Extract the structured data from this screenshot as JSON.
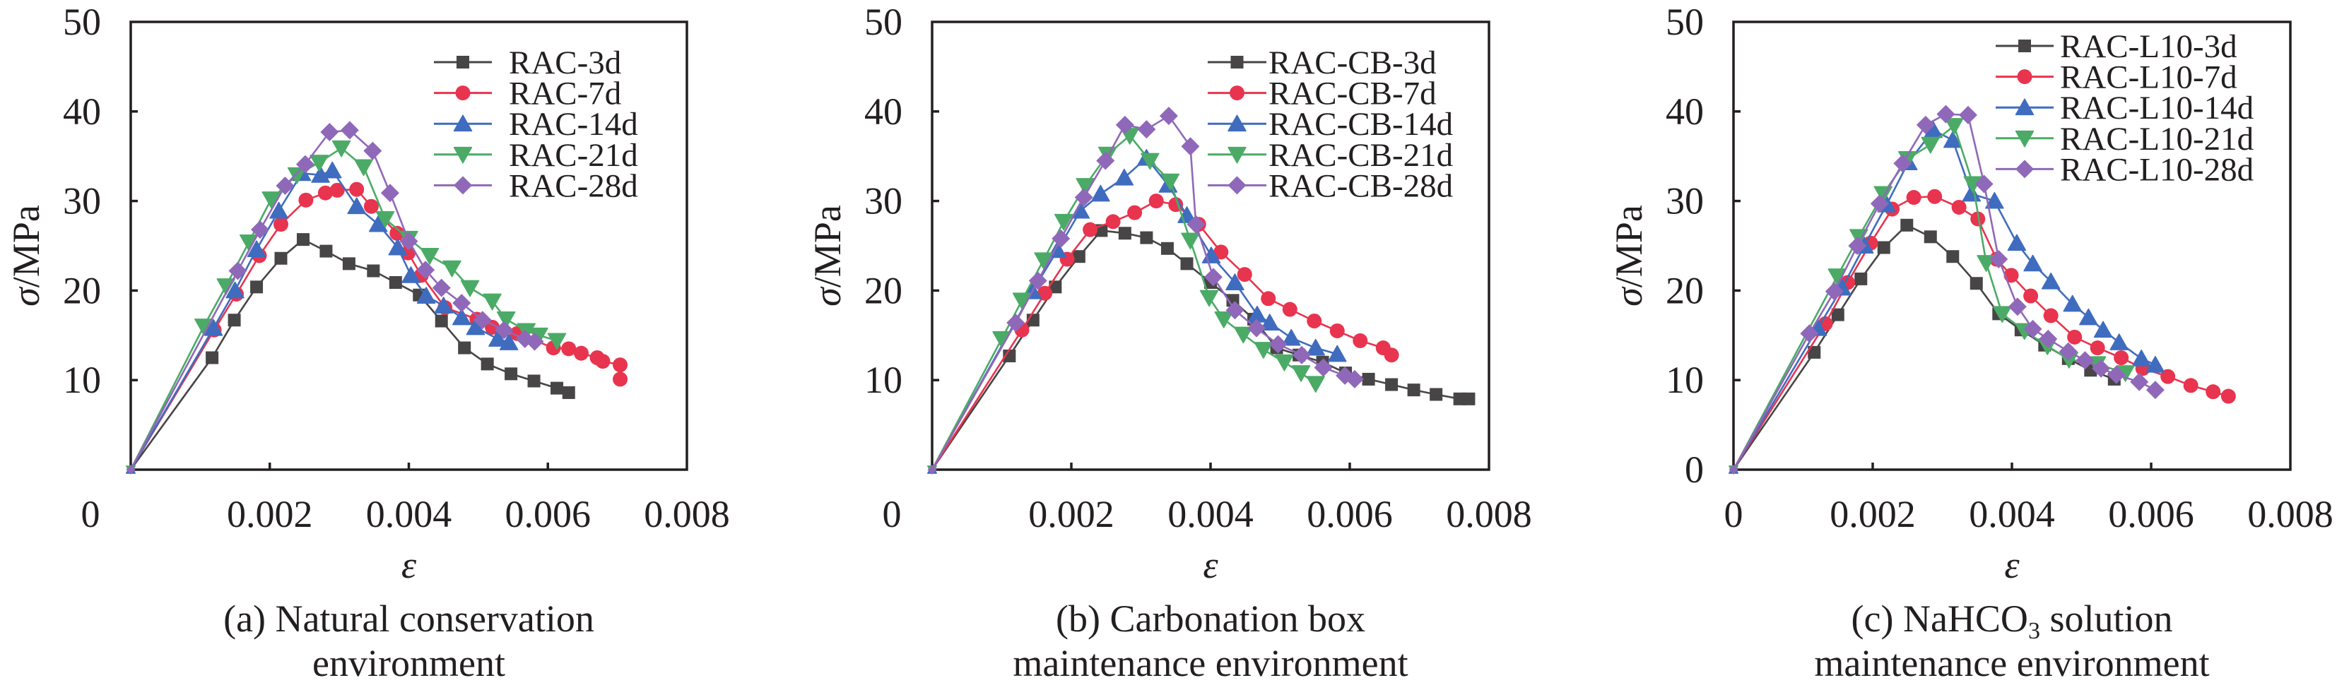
{
  "colors": {
    "3d": "#474546",
    "7d": "#e8344e",
    "14d": "#3f6cbf",
    "21d": "#4bab66",
    "28d": "#9068b9",
    "axis": "#231f20"
  },
  "chart_data": [
    {
      "type": "line",
      "panel": "a",
      "caption": {
        "prefix": "(a) Natural conservation",
        "subscript": "",
        "suffix": "",
        "line2": "environment"
      },
      "xlabel": "ε",
      "ylabel": {
        "symbol": "σ",
        "unit": "/MPa"
      },
      "xlim": [
        0,
        0.008
      ],
      "ylim": [
        0,
        50
      ],
      "grid": false,
      "legend": "top-right",
      "xticks": [
        0,
        0.002,
        0.004,
        0.006,
        0.008
      ],
      "xtick_labels": [
        "0",
        "0.002",
        "0.004",
        "0.006",
        "0.008"
      ],
      "yticks": [
        10,
        20,
        30,
        40,
        50
      ],
      "ytick_labels": [
        "10",
        "20",
        "30",
        "40",
        "50"
      ],
      "series": [
        {
          "name": "RAC-3d",
          "key": "3d",
          "marker": "square",
          "x": [
            0,
            0.00117,
            0.00149,
            0.00181,
            0.00216,
            0.00248,
            0.00281,
            0.00314,
            0.00349,
            0.00381,
            0.00415,
            0.00447,
            0.0048,
            0.00513,
            0.00547,
            0.0058,
            0.00613,
            0.0063
          ],
          "y": [
            0,
            12.5,
            16.7,
            20.4,
            23.6,
            25.7,
            24.4,
            23.0,
            22.2,
            20.9,
            19.5,
            16.6,
            13.6,
            11.8,
            10.7,
            9.9,
            9.1,
            8.6
          ]
        },
        {
          "name": "RAC-7d",
          "key": "7d",
          "marker": "circle",
          "x": [
            0,
            0.0012,
            0.00152,
            0.00185,
            0.00216,
            0.00252,
            0.0028,
            0.00297,
            0.00325,
            0.00346,
            0.00383,
            0.00399,
            0.00418,
            0.00452,
            0.00498,
            0.0052,
            0.00556,
            0.00608,
            0.0063,
            0.00648,
            0.00671,
            0.00679,
            0.00704,
            0.00704
          ],
          "y": [
            0,
            15.6,
            19.6,
            23.9,
            27.4,
            30.1,
            30.9,
            31.2,
            31.3,
            29.4,
            26.4,
            24.2,
            21.7,
            18.1,
            16.8,
            15.9,
            15.2,
            13.6,
            13.5,
            13.0,
            12.5,
            12.1,
            11.7,
            10.1
          ]
        },
        {
          "name": "RAC-14d",
          "key": "14d",
          "marker": "triangle-up",
          "x": [
            0,
            0.00119,
            0.0015,
            0.00181,
            0.00213,
            0.00246,
            0.00273,
            0.0029,
            0.00325,
            0.00356,
            0.00384,
            0.00403,
            0.00425,
            0.0045,
            0.00476,
            0.00496,
            0.00528,
            0.00544
          ],
          "y": [
            0,
            15.8,
            20.0,
            24.6,
            28.9,
            33.1,
            32.9,
            33.4,
            29.4,
            27.4,
            24.8,
            21.7,
            19.4,
            18.3,
            17.0,
            15.9,
            14.6,
            14.2
          ]
        },
        {
          "name": "RAC-21d",
          "key": "21d",
          "marker": "triangle-down",
          "x": [
            0,
            0.00105,
            0.00137,
            0.0017,
            0.00202,
            0.00239,
            0.00271,
            0.00303,
            0.00335,
            0.00366,
            0.004,
            0.0043,
            0.00462,
            0.00488,
            0.0052,
            0.0054,
            0.00569,
            0.00587,
            0.00613
          ],
          "y": [
            0,
            16.0,
            20.5,
            25.4,
            30.2,
            32.9,
            34.3,
            35.9,
            33.8,
            28.0,
            25.8,
            23.9,
            22.5,
            20.3,
            18.8,
            16.8,
            15.5,
            15.0,
            14.4
          ]
        },
        {
          "name": "RAC-28d",
          "key": "28d",
          "marker": "diamond",
          "x": [
            0,
            0.00154,
            0.00186,
            0.00222,
            0.00251,
            0.00286,
            0.00315,
            0.00348,
            0.00373,
            0.004,
            0.00424,
            0.00447,
            0.00476,
            0.00506,
            0.00537,
            0.00567,
            0.00581
          ],
          "y": [
            0,
            22.2,
            26.8,
            31.7,
            34.1,
            37.7,
            37.9,
            35.6,
            30.9,
            25.5,
            22.3,
            20.3,
            18.6,
            16.7,
            15.6,
            14.6,
            14.3
          ]
        }
      ]
    },
    {
      "type": "line",
      "panel": "b",
      "caption": {
        "prefix": "(b) Carbonation box",
        "subscript": "",
        "suffix": "",
        "line2": "maintenance environment"
      },
      "xlabel": "ε",
      "ylabel": {
        "symbol": "σ",
        "unit": "/MPa"
      },
      "xlim": [
        0,
        0.008
      ],
      "ylim": [
        0,
        50
      ],
      "grid": false,
      "legend": "top-right",
      "xticks": [
        0,
        0.002,
        0.004,
        0.006,
        0.008
      ],
      "xtick_labels": [
        "0",
        "0.002",
        "0.004",
        "0.006",
        "0.008"
      ],
      "yticks": [
        10,
        20,
        30,
        40,
        50
      ],
      "ytick_labels": [
        "10",
        "20",
        "30",
        "40",
        "50"
      ],
      "series": [
        {
          "name": "RAC-CB-3d",
          "key": "3d",
          "marker": "square",
          "x": [
            0,
            0.00111,
            0.00145,
            0.00177,
            0.00211,
            0.00243,
            0.00277,
            0.00308,
            0.00338,
            0.00366,
            0.004,
            0.00432,
            0.00462,
            0.00495,
            0.00527,
            0.00561,
            0.00594,
            0.00627,
            0.0066,
            0.00692,
            0.00724,
            0.00758,
            0.00771
          ],
          "y": [
            0,
            12.7,
            16.7,
            20.4,
            23.8,
            26.7,
            26.4,
            25.9,
            24.7,
            23.0,
            20.9,
            18.9,
            16.8,
            13.6,
            12.8,
            12.0,
            10.8,
            10.1,
            9.5,
            8.9,
            8.4,
            7.9,
            7.9
          ]
        },
        {
          "name": "RAC-CB-7d",
          "key": "7d",
          "marker": "circle",
          "x": [
            0,
            0.00129,
            0.00162,
            0.00194,
            0.00227,
            0.0026,
            0.00291,
            0.00322,
            0.0035,
            0.00383,
            0.00415,
            0.00449,
            0.00483,
            0.00514,
            0.00549,
            0.00582,
            0.00615,
            0.00648,
            0.0066
          ],
          "y": [
            0,
            15.6,
            19.7,
            23.5,
            26.8,
            27.7,
            28.7,
            30.0,
            29.6,
            27.4,
            24.3,
            21.8,
            19.1,
            17.9,
            16.6,
            15.5,
            14.4,
            13.6,
            12.8
          ]
        },
        {
          "name": "RAC-CB-14d",
          "key": "14d",
          "marker": "triangle-up",
          "x": [
            0,
            0.00144,
            0.0018,
            0.00213,
            0.00242,
            0.00276,
            0.00308,
            0.00339,
            0.00366,
            0.00401,
            0.00435,
            0.00467,
            0.00485,
            0.00516,
            0.00551,
            0.00582
          ],
          "y": [
            0,
            19.9,
            24.5,
            28.9,
            30.8,
            32.6,
            34.8,
            31.8,
            28.4,
            23.9,
            20.9,
            17.3,
            16.4,
            14.7,
            13.6,
            12.9
          ]
        },
        {
          "name": "RAC-CB-21d",
          "key": "21d",
          "marker": "triangle-down",
          "x": [
            0,
            0.001,
            0.00129,
            0.0016,
            0.00189,
            0.0022,
            0.00252,
            0.00284,
            0.00313,
            0.00342,
            0.00371,
            0.00398,
            0.00419,
            0.00447,
            0.00476,
            0.00506,
            0.0053,
            0.00551
          ],
          "y": [
            0,
            14.6,
            18.9,
            23.4,
            27.7,
            31.7,
            35.2,
            37.3,
            34.5,
            32.2,
            25.6,
            19.2,
            16.8,
            15.1,
            13.4,
            12.0,
            10.8,
            9.6
          ]
        },
        {
          "name": "RAC-CB-28d",
          "key": "28d",
          "marker": "diamond",
          "x": [
            0,
            0.0012,
            0.00152,
            0.00185,
            0.00218,
            0.00249,
            0.00277,
            0.00308,
            0.0034,
            0.00371,
            0.00379,
            0.00404,
            0.00435,
            0.00466,
            0.00497,
            0.00531,
            0.00562,
            0.00593,
            0.00607
          ],
          "y": [
            0,
            16.4,
            21.1,
            25.8,
            30.4,
            34.5,
            38.5,
            38.0,
            39.5,
            36.1,
            27.4,
            21.5,
            17.8,
            15.8,
            14.0,
            12.8,
            11.4,
            10.5,
            10.1
          ]
        }
      ]
    },
    {
      "type": "line",
      "panel": "c",
      "caption": {
        "prefix": "(c) NaHCO",
        "subscript": "3",
        "suffix": " solution",
        "line2": "maintenance environment"
      },
      "xlabel": "ε",
      "ylabel": {
        "symbol": "σ",
        "unit": "/MPa"
      },
      "xlim": [
        0,
        0.008
      ],
      "ylim": [
        0,
        50
      ],
      "grid": false,
      "legend": "top-right",
      "xticks": [
        0,
        0.002,
        0.004,
        0.006,
        0.008
      ],
      "xtick_labels": [
        "0",
        "0.002",
        "0.004",
        "0.006",
        "0.008"
      ],
      "yticks": [
        0,
        10,
        20,
        30,
        40,
        50
      ],
      "ytick_labels": [
        "0",
        "10",
        "20",
        "30",
        "40",
        "50"
      ],
      "series": [
        {
          "name": "RAC-L10-3d",
          "key": "3d",
          "marker": "square",
          "x": [
            0,
            0.00116,
            0.0015,
            0.00183,
            0.00216,
            0.00249,
            0.00283,
            0.00315,
            0.00349,
            0.00381,
            0.00413,
            0.00447,
            0.00481,
            0.00513,
            0.00547
          ],
          "y": [
            0,
            13.1,
            17.3,
            21.3,
            24.8,
            27.3,
            26.0,
            23.8,
            20.8,
            17.4,
            15.6,
            13.9,
            12.4,
            11.1,
            10.1
          ]
        },
        {
          "name": "RAC-L10-7d",
          "key": "7d",
          "marker": "circle",
          "x": [
            0,
            0.00132,
            0.00164,
            0.00197,
            0.00228,
            0.00259,
            0.00289,
            0.00324,
            0.00351,
            0.00378,
            0.00399,
            0.00427,
            0.00456,
            0.0049,
            0.00523,
            0.00557,
            0.00588,
            0.00624,
            0.00657,
            0.00689,
            0.00711
          ],
          "y": [
            0,
            16.3,
            20.9,
            25.3,
            29.1,
            30.4,
            30.5,
            29.3,
            28.0,
            23.5,
            21.7,
            19.4,
            17.2,
            14.8,
            13.6,
            12.5,
            11.3,
            10.4,
            9.4,
            8.7,
            8.2
          ]
        },
        {
          "name": "RAC-L10-14d",
          "key": "14d",
          "marker": "triangle-up",
          "x": [
            0,
            0.00121,
            0.00156,
            0.00188,
            0.0022,
            0.00251,
            0.00287,
            0.00315,
            0.00342,
            0.00375,
            0.00407,
            0.0043,
            0.00456,
            0.00487,
            0.0051,
            0.00531,
            0.00554,
            0.00586,
            0.00606
          ],
          "y": [
            0,
            15.8,
            20.3,
            25.0,
            29.6,
            34.3,
            37.9,
            36.8,
            30.8,
            30.0,
            25.3,
            23.0,
            21.0,
            18.5,
            17.0,
            15.6,
            14.2,
            12.4,
            11.7
          ]
        },
        {
          "name": "RAC-L10-21d",
          "key": "21d",
          "marker": "triangle-down",
          "x": [
            0,
            0.00149,
            0.0018,
            0.00215,
            0.0025,
            0.00283,
            0.00317,
            0.00344,
            0.00363,
            0.00386,
            0.00418,
            0.00451,
            0.00482,
            0.00522,
            0.00563
          ],
          "y": [
            0,
            21.6,
            26.0,
            30.8,
            34.7,
            36.3,
            38.4,
            31.9,
            23.1,
            17.4,
            15.5,
            13.8,
            12.3,
            11.8,
            10.8
          ]
        },
        {
          "name": "RAC-L10-28d",
          "key": "28d",
          "marker": "diamond",
          "x": [
            0,
            0.00109,
            0.00145,
            0.00178,
            0.0021,
            0.00243,
            0.00276,
            0.00305,
            0.00337,
            0.0036,
            0.00381,
            0.00408,
            0.0043,
            0.00452,
            0.00481,
            0.00505,
            0.00528,
            0.0055,
            0.00583,
            0.00606
          ],
          "y": [
            0,
            15.2,
            19.9,
            25.0,
            29.7,
            34.2,
            38.5,
            39.7,
            39.6,
            31.9,
            23.5,
            18.2,
            15.7,
            14.6,
            13.2,
            12.2,
            11.3,
            10.6,
            9.8,
            8.9
          ]
        }
      ]
    }
  ]
}
